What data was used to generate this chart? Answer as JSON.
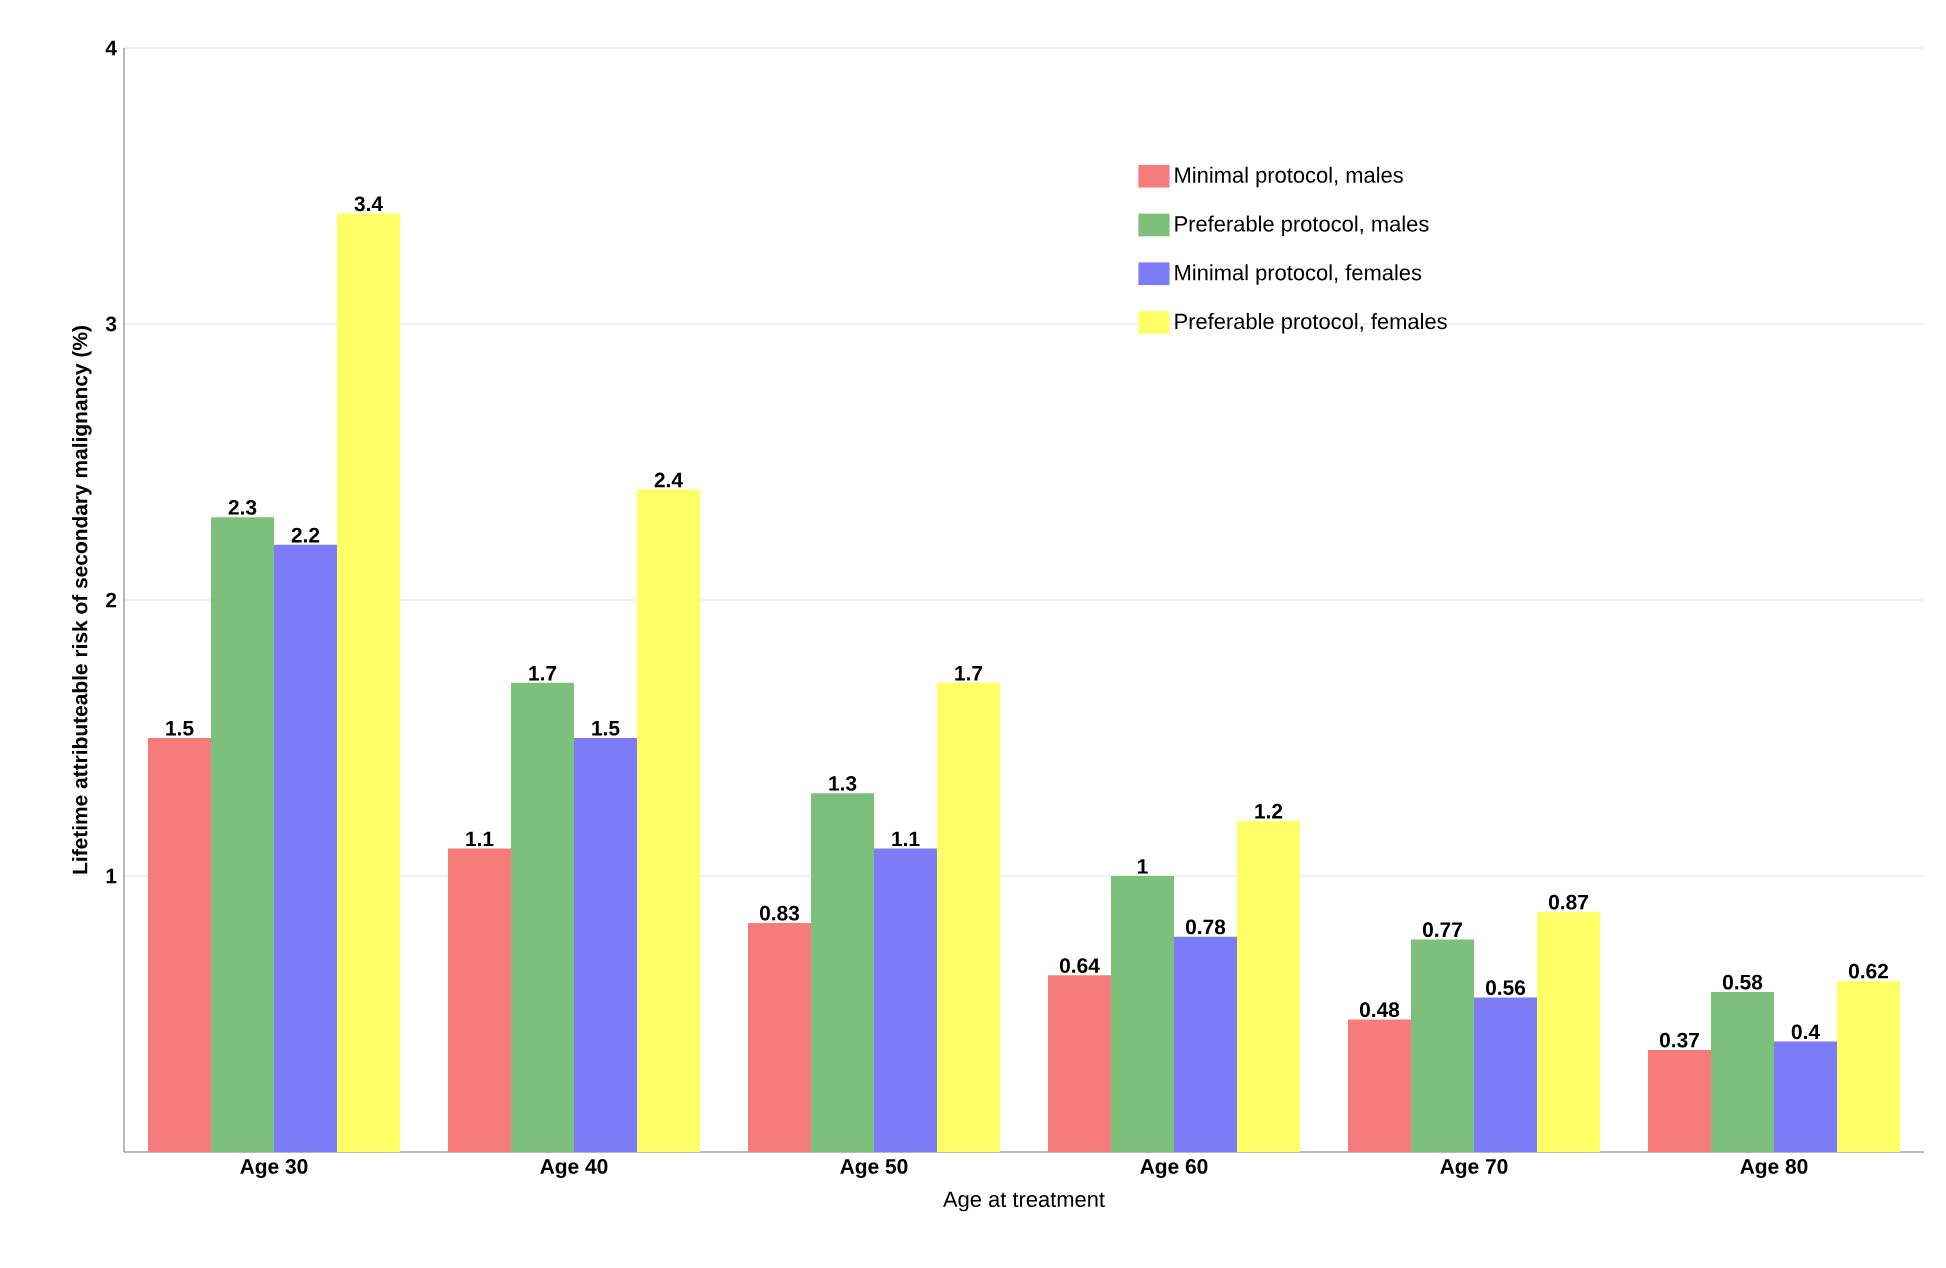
{
  "chart_data": {
    "type": "bar",
    "xlabel": "Age at treatment",
    "ylabel": "Lifetime attributeable risk of secondary malignancy (%)",
    "categories": [
      "Age 30",
      "Age 40",
      "Age 50",
      "Age 60",
      "Age 70",
      "Age 80"
    ],
    "series": [
      {
        "name": "Minimal protocol, males",
        "color": "#f67c7c",
        "values": [
          1.5,
          1.1,
          0.83,
          0.64,
          0.48,
          0.37
        ]
      },
      {
        "name": "Preferable protocol, males",
        "color": "#7cc07c",
        "values": [
          2.3,
          1.7,
          1.3,
          1,
          0.77,
          0.58
        ]
      },
      {
        "name": "Minimal protocol, females",
        "color": "#7c7cf6",
        "values": [
          2.2,
          1.5,
          1.1,
          0.78,
          0.56,
          0.4
        ]
      },
      {
        "name": "Preferable protocol, females",
        "color": "#ffff66",
        "values": [
          3.4,
          2.4,
          1.7,
          1.2,
          0.87,
          0.62
        ]
      }
    ],
    "ylim": [
      0,
      4
    ],
    "yticks": [
      1,
      2,
      3,
      4
    ],
    "grid": "y",
    "legend": "top right",
    "data_labels": true
  }
}
